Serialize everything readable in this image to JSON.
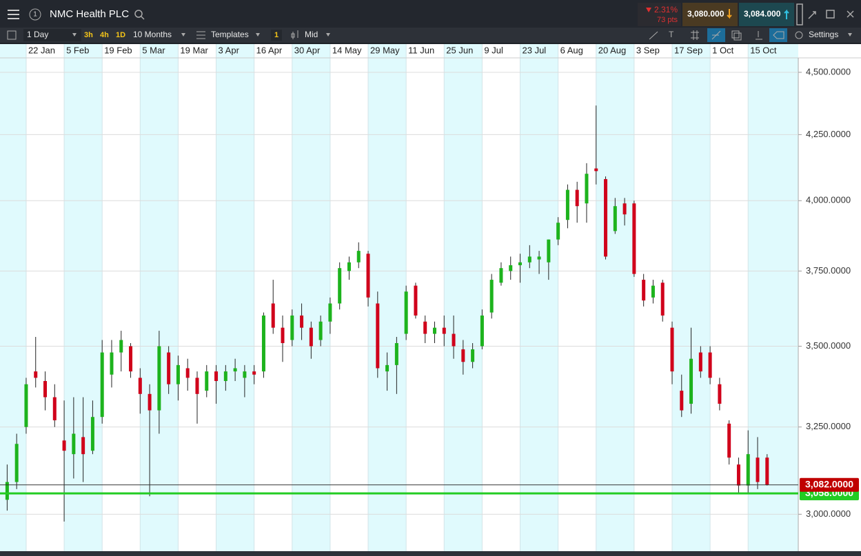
{
  "header": {
    "title": "NMC Health PLC",
    "badge": "1",
    "change_pct": "2.31%",
    "change_pts": "73 pts",
    "sell": "3,080.000",
    "buy": "3,084.000"
  },
  "toolbar": {
    "interval": "1 Day",
    "quick": [
      "3h",
      "4h",
      "1D"
    ],
    "range": "10 Months",
    "templates": "Templates",
    "count": "1",
    "price_type": "Mid",
    "settings": "Settings"
  },
  "chart_data": {
    "type": "candlestick",
    "log_scale": true,
    "grid": true,
    "up_color": "#1db31d",
    "down_color": "#d0021b",
    "categories": [
      null,
      null,
      "22 Jan",
      null,
      null,
      null,
      "5 Feb",
      null,
      null,
      null,
      "19 Feb",
      null,
      null,
      null,
      "5 Mar",
      null,
      null,
      null,
      "19 Mar",
      null,
      null,
      null,
      "3 Apr",
      null,
      null,
      null,
      "16 Apr",
      null,
      null,
      null,
      "30 Apr",
      null,
      null,
      null,
      "14 May",
      null,
      null,
      null,
      "29 May",
      null,
      null,
      null,
      "11 Jun",
      null,
      null,
      null,
      "25 Jun",
      null,
      null,
      null,
      "9 Jul",
      null,
      null,
      null,
      "23 Jul",
      null,
      null,
      null,
      "6 Aug",
      null,
      null,
      null,
      "20 Aug",
      null,
      null,
      null,
      "3 Sep",
      null,
      null,
      null,
      "17 Sep",
      null,
      null,
      null,
      "1 Oct",
      null,
      null,
      null,
      "15 Oct",
      null,
      null
    ],
    "open": [
      3040,
      3090,
      3250,
      3420,
      3390,
      3340,
      3210,
      3170,
      3220,
      3180,
      3280,
      3410,
      3480,
      3500,
      3400,
      3350,
      3300,
      3480,
      3380,
      3430,
      3400,
      3360,
      3420,
      3390,
      3420,
      3400,
      3420,
      3420,
      3640,
      3560,
      3520,
      3600,
      3560,
      3520,
      3580,
      3640,
      3750,
      3780,
      3810,
      3640,
      3420,
      3440,
      3540,
      3700,
      3580,
      3540,
      3560,
      3540,
      3490,
      3450,
      3500,
      3610,
      3710,
      3750,
      3770,
      3780,
      3790,
      3780,
      3860,
      3930,
      4040,
      3990,
      4120,
      4080,
      3890,
      3990,
      3990,
      3720,
      3660,
      3710,
      3560,
      3360,
      3320,
      3480,
      3480,
      3380,
      3260,
      3140,
      3080,
      3160,
      3160
    ],
    "high": [
      3140,
      3230,
      3400,
      3530,
      3420,
      3380,
      3330,
      3340,
      3340,
      3330,
      3520,
      3520,
      3550,
      3510,
      3430,
      3380,
      3550,
      3500,
      3470,
      3460,
      3420,
      3440,
      3440,
      3440,
      3460,
      3440,
      3440,
      3610,
      3720,
      3600,
      3620,
      3640,
      3580,
      3600,
      3660,
      3780,
      3800,
      3850,
      3820,
      3680,
      3480,
      3530,
      3700,
      3710,
      3600,
      3580,
      3600,
      3600,
      3520,
      3510,
      3620,
      3740,
      3780,
      3800,
      3810,
      3840,
      3820,
      3860,
      3940,
      4060,
      4070,
      4140,
      4365,
      4090,
      4010,
      4010,
      4000,
      3740,
      3720,
      3720,
      3580,
      3410,
      3560,
      3500,
      3500,
      3400,
      3270,
      3160,
      3240,
      3220,
      3170
    ],
    "low": [
      3010,
      3070,
      3230,
      3370,
      3300,
      3250,
      2980,
      3100,
      3090,
      3170,
      3260,
      3370,
      3420,
      3400,
      3290,
      3050,
      3230,
      3350,
      3330,
      3360,
      3260,
      3340,
      3320,
      3360,
      3390,
      3340,
      3380,
      3400,
      3540,
      3450,
      3500,
      3520,
      3460,
      3500,
      3540,
      3620,
      3720,
      3760,
      3630,
      3400,
      3360,
      3350,
      3520,
      3590,
      3510,
      3510,
      3500,
      3460,
      3410,
      3430,
      3490,
      3590,
      3700,
      3720,
      3710,
      3760,
      3740,
      3720,
      3840,
      3900,
      3920,
      3920,
      4060,
      3790,
      3880,
      3910,
      3730,
      3630,
      3640,
      3580,
      3380,
      3280,
      3290,
      3400,
      3380,
      3300,
      3140,
      3060,
      3060,
      3070,
      3080
    ],
    "close": [
      3090,
      3200,
      3380,
      3400,
      3340,
      3270,
      3180,
      3230,
      3170,
      3280,
      3480,
      3480,
      3520,
      3420,
      3350,
      3300,
      3500,
      3380,
      3440,
      3400,
      3350,
      3420,
      3390,
      3420,
      3430,
      3420,
      3410,
      3600,
      3560,
      3510,
      3600,
      3560,
      3500,
      3580,
      3640,
      3760,
      3780,
      3820,
      3660,
      3430,
      3440,
      3510,
      3680,
      3600,
      3540,
      3560,
      3540,
      3500,
      3450,
      3490,
      3600,
      3720,
      3760,
      3770,
      3780,
      3800,
      3800,
      3860,
      3920,
      4040,
      3980,
      4100,
      4110,
      3800,
      3980,
      3950,
      3740,
      3650,
      3700,
      3600,
      3420,
      3300,
      3460,
      3420,
      3400,
      3320,
      3160,
      3080,
      3170,
      3090,
      3082
    ],
    "ylim": [
      2900,
      4560
    ],
    "yticks": [
      {
        "value": 3000,
        "label": "3,000.0000"
      },
      {
        "value": 3250,
        "label": "3,250.0000"
      },
      {
        "value": 3500,
        "label": "3,500.0000"
      },
      {
        "value": 3750,
        "label": "3,750.0000"
      },
      {
        "value": 4000,
        "label": "4,000.0000"
      },
      {
        "value": 4250,
        "label": "4,250.0000"
      },
      {
        "value": 4500,
        "label": "4,500.0000"
      }
    ],
    "price_lines": [
      {
        "value": 3058,
        "label": "3,058.0000",
        "color": "#22cc22"
      },
      {
        "value": 3082,
        "label": "3,082.0000",
        "color": "#c00000"
      }
    ]
  }
}
